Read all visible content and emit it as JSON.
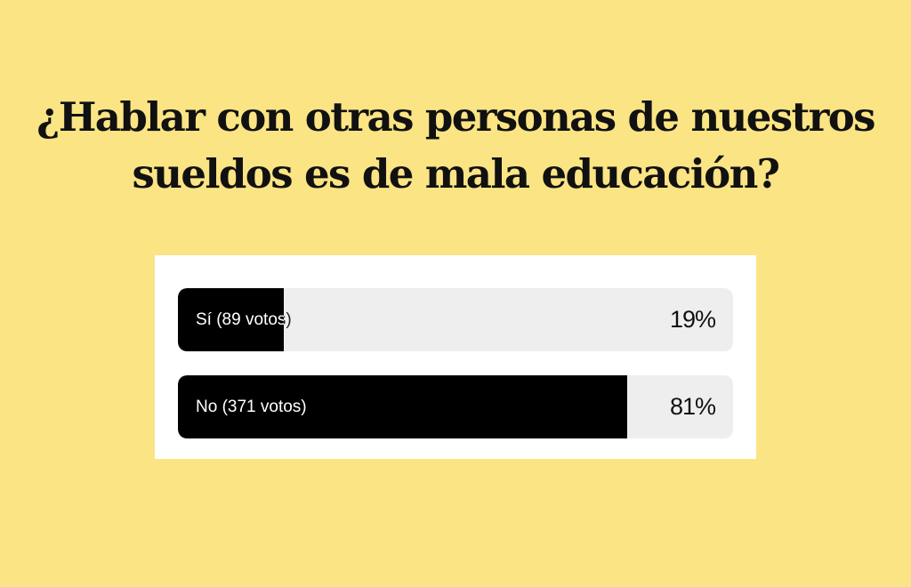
{
  "question": "¿Hablar con otras personas de nuestros sueldos es de mala educación?",
  "colors": {
    "background": "#fae484",
    "card": "#ffffff",
    "track": "#eeeeee",
    "fill": "#000000"
  },
  "poll": {
    "options": [
      {
        "label": "Sí (89 votos)",
        "percent": "19%",
        "share": 0.19
      },
      {
        "label": "No (371 votos)",
        "percent": "81%",
        "share": 0.81
      }
    ]
  }
}
